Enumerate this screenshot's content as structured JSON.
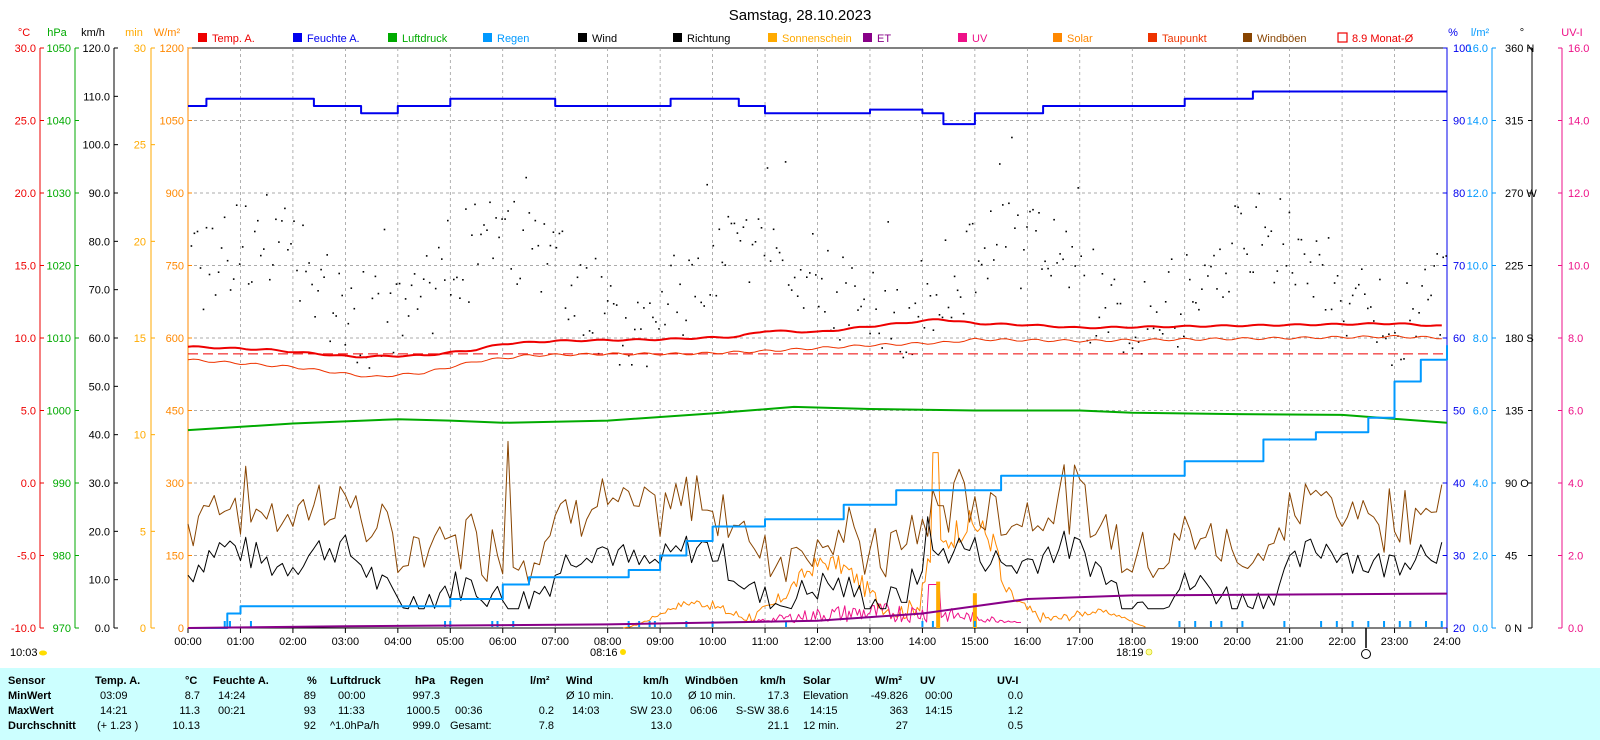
{
  "title": "Samstag, 28.10.2023",
  "colors": {
    "temp": "#ee0000",
    "humidity": "#0000ee",
    "pressure": "#00aa00",
    "rain": "#0099ff",
    "wind": "#000000",
    "direction": "#000000",
    "sunshine": "#ffaa00",
    "et": "#880088",
    "uv": "#ee1188",
    "solar": "#ff8800",
    "dewpoint": "#ee3300",
    "gust": "#884400",
    "monthavg": "#ee0000",
    "stats_bg": "#ccffff",
    "grid": "#909090"
  },
  "legend": [
    {
      "label": "Temp. A.",
      "color": "#ee0000",
      "icon": "filled-square"
    },
    {
      "label": "Feuchte A.",
      "color": "#0000ee",
      "icon": "filled-square"
    },
    {
      "label": "Luftdruck",
      "color": "#00aa00",
      "icon": "filled-square"
    },
    {
      "label": "Regen",
      "color": "#0099ff",
      "icon": "filled-square"
    },
    {
      "label": "Wind",
      "color": "#000000",
      "icon": "filled-square"
    },
    {
      "label": "Richtung",
      "color": "#000000",
      "icon": "filled-square"
    },
    {
      "label": "Sonnenschein",
      "color": "#ffaa00",
      "icon": "filled-square"
    },
    {
      "label": "ET",
      "color": "#880088",
      "icon": "filled-square"
    },
    {
      "label": "UV",
      "color": "#ee1188",
      "icon": "filled-square"
    },
    {
      "label": "Solar",
      "color": "#ff8800",
      "icon": "filled-square"
    },
    {
      "label": "Taupunkt",
      "color": "#ee3300",
      "icon": "filled-square"
    },
    {
      "label": "Windböen",
      "color": "#884400",
      "icon": "filled-square"
    },
    {
      "label": "8.9 Monat-Ø",
      "color": "#ee0000",
      "icon": "outline-square"
    }
  ],
  "axes": {
    "temp": {
      "unit": "°C",
      "ticks": [
        "30.0",
        "25.0",
        "20.0",
        "15.0",
        "10.0",
        "5.0",
        "0.0",
        "-5.0",
        "-10.0"
      ],
      "range": [
        -10,
        30
      ]
    },
    "pressure": {
      "unit": "hPa",
      "ticks": [
        "1050",
        "1040",
        "1030",
        "1020",
        "1010",
        "1000",
        "990",
        "980",
        "970"
      ],
      "range": [
        970,
        1050
      ]
    },
    "wind": {
      "unit": "km/h",
      "ticks": [
        "120.0",
        "110.0",
        "100.0",
        "90.0",
        "80.0",
        "70.0",
        "60.0",
        "50.0",
        "40.0",
        "30.0",
        "20.0",
        "10.0",
        "0.0"
      ],
      "range": [
        0,
        120
      ]
    },
    "sunmin": {
      "unit": "min",
      "ticks": [
        "30",
        "25",
        "20",
        "15",
        "10",
        "5",
        "0"
      ],
      "range": [
        0,
        30
      ]
    },
    "solar": {
      "unit": "W/m²",
      "ticks": [
        "1200",
        "1050",
        "900",
        "750",
        "600",
        "450",
        "300",
        "150",
        "0"
      ],
      "range": [
        0,
        1200
      ]
    },
    "humidity": {
      "unit": "%",
      "ticks": [
        "100",
        "90",
        "80",
        "70",
        "60",
        "50",
        "40",
        "30",
        "20"
      ],
      "range": [
        20,
        100
      ]
    },
    "rain": {
      "unit": "l/m²",
      "ticks": [
        "16.0",
        "14.0",
        "12.0",
        "10.0",
        "8.0",
        "6.0",
        "4.0",
        "2.0",
        "0.0"
      ],
      "range": [
        0,
        16
      ]
    },
    "direction": {
      "unit": "°",
      "ticks": [
        "360 N",
        "315",
        "270 W",
        "225",
        "180 S",
        "135",
        "90 O",
        "45",
        "0 N"
      ],
      "range": [
        0,
        360
      ]
    },
    "uvi": {
      "unit": "UV-I",
      "ticks": [
        "16.0",
        "14.0",
        "12.0",
        "10.0",
        "8.0",
        "6.0",
        "4.0",
        "2.0",
        "0.0"
      ],
      "range": [
        0,
        16
      ]
    },
    "time": [
      "00:00",
      "01:00",
      "02:00",
      "03:00",
      "04:00",
      "05:00",
      "06:00",
      "07:00",
      "08:00",
      "09:00",
      "10:00",
      "11:00",
      "12:00",
      "13:00",
      "14:00",
      "15:00",
      "16:00",
      "17:00",
      "18:00",
      "19:00",
      "20:00",
      "21:00",
      "22:00",
      "23:00",
      "24:00"
    ]
  },
  "markers": {
    "sunrise": "08:16",
    "sunset": "18:19",
    "daylength": "10:03"
  },
  "chart_data": {
    "type": "line",
    "title": "Samstag, 28.10.2023",
    "x_unit": "hours",
    "series": [
      {
        "name": "Temp. A.",
        "axis": "temp",
        "points": [
          [
            0,
            9.4
          ],
          [
            1.5,
            9.2
          ],
          [
            2.5,
            8.9
          ],
          [
            3.15,
            8.7
          ],
          [
            4.5,
            8.8
          ],
          [
            5.5,
            9.2
          ],
          [
            6,
            9.6
          ],
          [
            7,
            9.8
          ],
          [
            9,
            9.9
          ],
          [
            10.5,
            10.1
          ],
          [
            11,
            10.5
          ],
          [
            12,
            10.4
          ],
          [
            13,
            10.8
          ],
          [
            14.35,
            11.3
          ],
          [
            15,
            11.0
          ],
          [
            16,
            10.9
          ],
          [
            17,
            10.7
          ],
          [
            19,
            10.8
          ],
          [
            21,
            10.9
          ],
          [
            23,
            11.0
          ],
          [
            24,
            10.8
          ]
        ]
      },
      {
        "name": "Feuchte A.",
        "axis": "humidity",
        "points": [
          [
            0,
            92
          ],
          [
            0.35,
            93
          ],
          [
            2.2,
            93
          ],
          [
            2.4,
            92
          ],
          [
            3,
            92
          ],
          [
            3.3,
            91
          ],
          [
            4,
            92
          ],
          [
            5,
            93
          ],
          [
            6.5,
            93
          ],
          [
            7,
            92
          ],
          [
            9,
            92
          ],
          [
            9.2,
            93
          ],
          [
            10,
            93
          ],
          [
            10.5,
            92
          ],
          [
            11,
            91
          ],
          [
            12,
            91
          ],
          [
            13,
            91.5
          ],
          [
            14,
            91
          ],
          [
            14.4,
            89.5
          ],
          [
            15,
            91
          ],
          [
            16,
            91
          ],
          [
            16.3,
            92
          ],
          [
            17,
            92
          ],
          [
            18,
            92
          ],
          [
            18.2,
            92
          ],
          [
            19,
            93
          ],
          [
            20.3,
            94
          ],
          [
            24,
            94
          ]
        ]
      },
      {
        "name": "Luftdruck",
        "axis": "pressure",
        "points": [
          [
            0,
            997.3
          ],
          [
            2,
            998.2
          ],
          [
            4,
            998.8
          ],
          [
            5,
            998.6
          ],
          [
            6,
            998.3
          ],
          [
            8,
            998.6
          ],
          [
            10,
            999.6
          ],
          [
            11.55,
            1000.5
          ],
          [
            13,
            1000.2
          ],
          [
            15,
            1000.0
          ],
          [
            17,
            1000.0
          ],
          [
            18,
            999.7
          ],
          [
            20,
            999.5
          ],
          [
            22,
            999.4
          ],
          [
            24,
            998.3
          ]
        ]
      },
      {
        "name": "Regen",
        "axis": "rain",
        "points": [
          [
            0,
            0
          ],
          [
            0.6,
            0
          ],
          [
            0.75,
            0.4
          ],
          [
            1,
            0.6
          ],
          [
            4.8,
            0.6
          ],
          [
            5,
            0.8
          ],
          [
            6,
            1.2
          ],
          [
            6.5,
            1.4
          ],
          [
            8.4,
            1.6
          ],
          [
            9,
            2
          ],
          [
            9.5,
            2.4
          ],
          [
            10,
            2.8
          ],
          [
            11,
            3.0
          ],
          [
            12.5,
            3.4
          ],
          [
            13.5,
            3.8
          ],
          [
            14.5,
            3.8
          ],
          [
            15.5,
            4.2
          ],
          [
            18.5,
            4.2
          ],
          [
            19,
            4.6
          ],
          [
            20.5,
            5.2
          ],
          [
            21.5,
            5.4
          ],
          [
            22.5,
            5.8
          ],
          [
            23,
            6.8
          ],
          [
            23.5,
            7.4
          ],
          [
            24,
            7.8
          ]
        ]
      },
      {
        "name": "Wind",
        "axis": "wind",
        "summary": {
          "min": 0.0,
          "max": 23.0,
          "avg": 13.0
        }
      },
      {
        "name": "Windböen",
        "axis": "wind",
        "summary": {
          "max": 38.6,
          "avg": 21.1
        }
      },
      {
        "name": "Taupunkt",
        "axis": "temp",
        "points": [
          [
            0,
            8.5
          ],
          [
            2,
            8.0
          ],
          [
            3.5,
            7.3
          ],
          [
            4.5,
            7.6
          ],
          [
            5.5,
            8.4
          ],
          [
            6.5,
            8.8
          ],
          [
            8,
            8.9
          ],
          [
            9.5,
            8.9
          ],
          [
            11,
            9.1
          ],
          [
            12,
            9.3
          ],
          [
            13,
            9.5
          ],
          [
            14.5,
            9.7
          ],
          [
            15,
            9.9
          ],
          [
            17,
            9.8
          ],
          [
            19,
            9.9
          ],
          [
            21,
            10.0
          ],
          [
            23,
            10.1
          ],
          [
            24,
            10.0
          ]
        ]
      },
      {
        "name": "Solar",
        "axis": "solar",
        "summary": {
          "max": 363,
          "max_time": "14:15"
        }
      },
      {
        "name": "UV",
        "axis": "uvi",
        "summary": {
          "max": 1.2,
          "max_time": "14:15",
          "avg": 0.5
        }
      },
      {
        "name": "ET",
        "axis": "rain",
        "points": [
          [
            0,
            0
          ],
          [
            3,
            0.05
          ],
          [
            8,
            0.1
          ],
          [
            12,
            0.2
          ],
          [
            14,
            0.4
          ],
          [
            15,
            0.6
          ],
          [
            16,
            0.8
          ],
          [
            18,
            0.9
          ],
          [
            24,
            0.95
          ]
        ]
      },
      {
        "name": "Sonnenschein",
        "axis": "sunmin",
        "points": [
          [
            14.3,
            2.4
          ],
          [
            15.0,
            1.8
          ]
        ]
      },
      {
        "name": "8.9 Monat-Ø",
        "axis": "temp",
        "points": [
          [
            0,
            8.9
          ],
          [
            24,
            8.9
          ]
        ]
      }
    ]
  },
  "stats": {
    "rows": [
      "Sensor",
      "MinWert",
      "MaxWert",
      "Durchschnitt"
    ],
    "temp": {
      "header": "Temp. A.",
      "unit": "°C",
      "min_time": "03:09",
      "min": "8.7",
      "max_time": "14:21",
      "max": "11.3",
      "avg_note": "(+ 1.23 )",
      "avg": "10.13"
    },
    "humidity": {
      "header": "Feuchte A.",
      "unit": "%",
      "min_time": "14:24",
      "min": "89",
      "max_time": "00:21",
      "max": "93",
      "avg": "92"
    },
    "pressure": {
      "header": "Luftdruck",
      "unit": "hPa",
      "min_time": "00:00",
      "min": "997.3",
      "max_time": "11:33",
      "max": "1000.5",
      "avg_note": "^1.0hPa/h",
      "avg": "999.0"
    },
    "rain": {
      "header": "Regen",
      "unit": "l/m²",
      "max_time": "00:36",
      "max": "0.2",
      "total_label": "Gesamt:",
      "total": "7.8"
    },
    "wind": {
      "header": "Wind",
      "unit": "km/h",
      "min_label": "Ø 10 min.",
      "min": "10.0",
      "max_time": "14:03",
      "max": "SW 23.0",
      "avg": "13.0"
    },
    "gust": {
      "header": "Windböen",
      "unit": "km/h",
      "min_label": "Ø 10 min.",
      "min": "17.3",
      "max_time": "06:06",
      "max": "S-SW 38.6",
      "avg": "21.1"
    },
    "solar": {
      "header": "Solar",
      "unit": "W/m²",
      "min_label": "Elevation",
      "min": "-49.826",
      "max_time": "14:15",
      "max": "363",
      "avg_label": "12 min.",
      "avg": "27"
    },
    "uv": {
      "header": "UV",
      "unit": "UV-I",
      "min_time": "00:00",
      "min": "0.0",
      "max_time": "14:15",
      "max": "1.2",
      "avg": "0.5"
    }
  }
}
